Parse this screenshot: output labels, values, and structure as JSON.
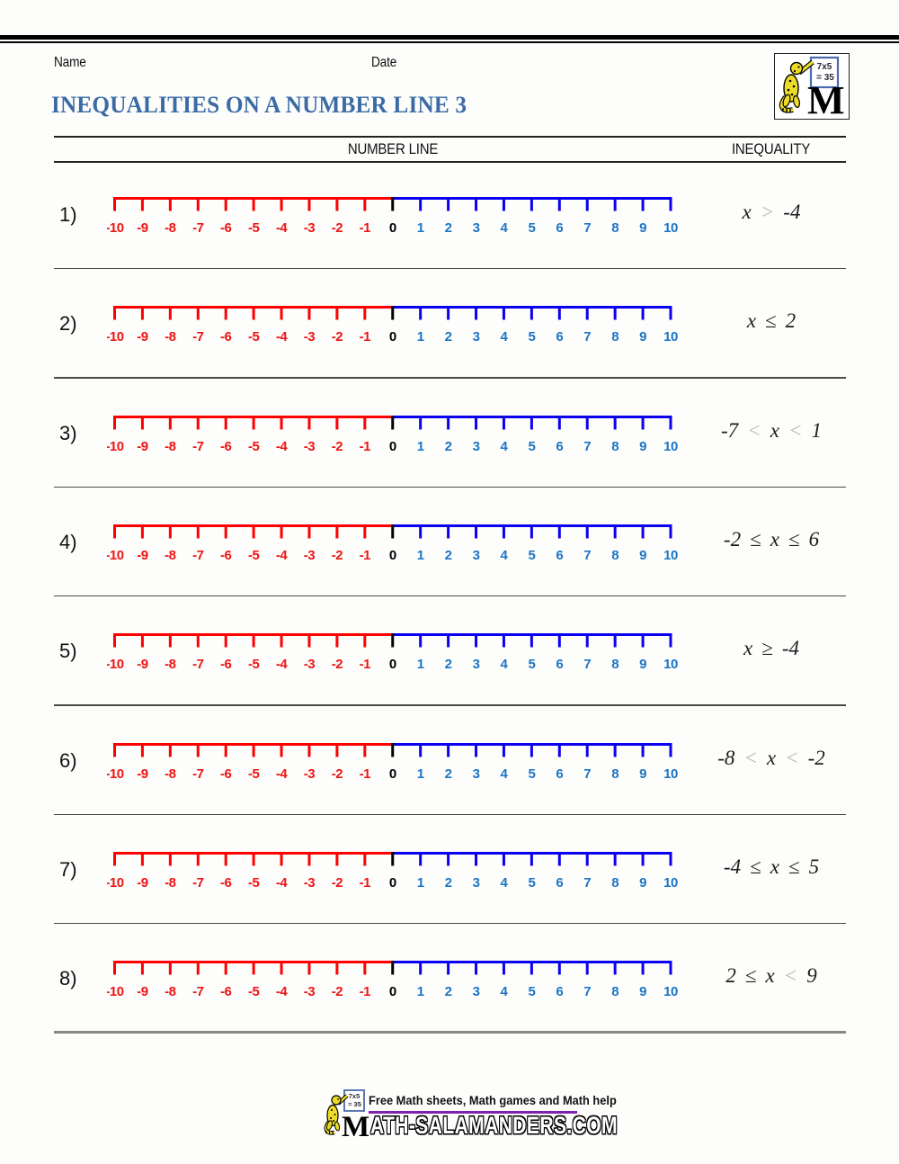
{
  "header": {
    "name_label": "Name",
    "date_label": "Date",
    "title": "INEQUALITIES ON A NUMBER LINE 3",
    "col_number_line": "NUMBER LINE",
    "col_inequality": "INEQUALITY"
  },
  "logo": {
    "board_line1": "7x5",
    "board_line2": "= 35",
    "m_letter": "M"
  },
  "number_line": {
    "min": -10,
    "max": 10,
    "tick_labels": [
      "-10",
      "-9",
      "-8",
      "-7",
      "-6",
      "-5",
      "-4",
      "-3",
      "-2",
      "-1",
      "0",
      "1",
      "2",
      "3",
      "4",
      "5",
      "6",
      "7",
      "8",
      "9",
      "10"
    ],
    "neg_line_color": "#ff0000",
    "pos_line_color": "#0b00f0",
    "zero_tick_color": "#000000",
    "neg_label_color": "#ee1515",
    "pos_label_color": "#1b75c4",
    "zero_label_color": "#000000"
  },
  "rows": [
    {
      "num": "1)",
      "inequality": [
        {
          "text": "x",
          "light": false
        },
        {
          "text": ">",
          "light": true
        },
        {
          "text": "-4",
          "light": false
        }
      ]
    },
    {
      "num": "2)",
      "inequality": [
        {
          "text": "x",
          "light": false
        },
        {
          "text": "≤",
          "light": false
        },
        {
          "text": "2",
          "light": false
        }
      ]
    },
    {
      "num": "3)",
      "inequality": [
        {
          "text": "-7",
          "light": false
        },
        {
          "text": "<",
          "light": true
        },
        {
          "text": "x",
          "light": false
        },
        {
          "text": "<",
          "light": true
        },
        {
          "text": "1",
          "light": false
        }
      ]
    },
    {
      "num": "4)",
      "inequality": [
        {
          "text": "-2",
          "light": false
        },
        {
          "text": "≤",
          "light": false
        },
        {
          "text": "x",
          "light": false
        },
        {
          "text": "≤",
          "light": false
        },
        {
          "text": "6",
          "light": false
        }
      ]
    },
    {
      "num": "5)",
      "inequality": [
        {
          "text": "x",
          "light": false
        },
        {
          "text": "≥",
          "light": false
        },
        {
          "text": "-4",
          "light": false
        }
      ]
    },
    {
      "num": "6)",
      "inequality": [
        {
          "text": "-8",
          "light": false
        },
        {
          "text": "<",
          "light": true
        },
        {
          "text": "x",
          "light": false
        },
        {
          "text": "<",
          "light": true
        },
        {
          "text": "-2",
          "light": false
        }
      ]
    },
    {
      "num": "7)",
      "inequality": [
        {
          "text": "-4",
          "light": false
        },
        {
          "text": "≤",
          "light": false
        },
        {
          "text": "x",
          "light": false
        },
        {
          "text": "≤",
          "light": false
        },
        {
          "text": "5",
          "light": false
        }
      ]
    },
    {
      "num": "8)",
      "inequality": [
        {
          "text": "2",
          "light": false
        },
        {
          "text": "≤",
          "light": false
        },
        {
          "text": "x",
          "light": false
        },
        {
          "text": "<",
          "light": true
        },
        {
          "text": "9",
          "light": false
        }
      ]
    }
  ],
  "footer": {
    "tagline": "Free Math sheets, Math games and Math help",
    "site": "ATH-SALAMANDERS.COM",
    "board_line1": "7x5",
    "board_line2": "= 35",
    "underline_color": "#7e22ad"
  }
}
